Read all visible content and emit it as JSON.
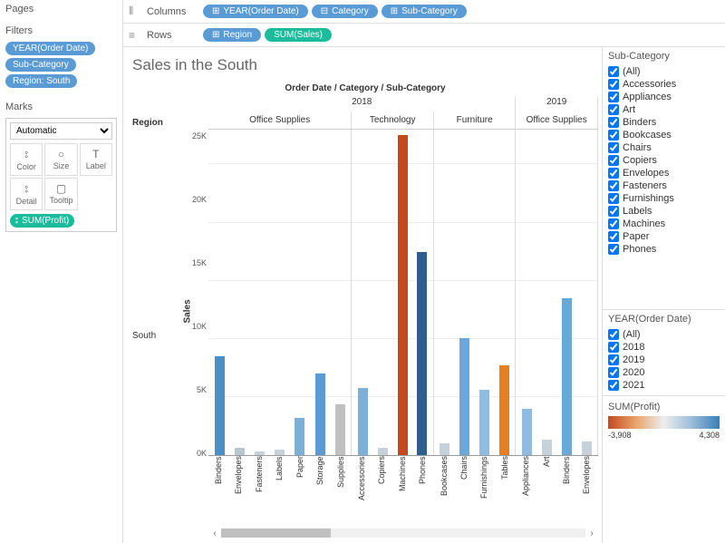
{
  "leftPanel": {
    "pages": "Pages",
    "filters": "Filters",
    "filterPills": [
      "YEAR(Order Date)",
      "Sub-Category",
      "Region: South"
    ],
    "marks": "Marks",
    "marksType": "Automatic",
    "marksCells": [
      {
        "icon": "⦂",
        "label": "Color"
      },
      {
        "icon": "○",
        "label": "Size"
      },
      {
        "icon": "T",
        "label": "Label"
      },
      {
        "icon": "⦂",
        "label": "Detail"
      },
      {
        "icon": "▢",
        "label": "Tooltip"
      }
    ],
    "profitPill": "SUM(Profit)"
  },
  "shelves": {
    "columnsLabel": "Columns",
    "rowsLabel": "Rows",
    "columns": [
      {
        "label": "YEAR(Order Date)",
        "cls": "blue",
        "icon": "⊞"
      },
      {
        "label": "Category",
        "cls": "blue",
        "icon": "⊟"
      },
      {
        "label": "Sub-Category",
        "cls": "blue",
        "icon": "⊞"
      }
    ],
    "rows": [
      {
        "label": "Region",
        "cls": "blue",
        "icon": "⊞"
      },
      {
        "label": "SUM(Sales)",
        "cls": "green",
        "icon": ""
      }
    ]
  },
  "chart": {
    "title": "Sales in the South",
    "headerLabel": "Order Date / Category / Sub-Category",
    "regionHeader": "Region",
    "regionValue": "South",
    "salesLabel": "Sales",
    "yMax": 28000,
    "yTicks": [
      "0K",
      "5K",
      "10K",
      "15K",
      "20K",
      "25K"
    ],
    "years": [
      {
        "label": "2018",
        "categories": [
          {
            "label": "Office Supplies",
            "bars": [
              {
                "l": "Binders",
                "v": 8500,
                "c": "#4b8fc4"
              },
              {
                "l": "Envelopes",
                "v": 600,
                "c": "#b9c7d1"
              },
              {
                "l": "Fasteners",
                "v": 300,
                "c": "#c7d1d9"
              },
              {
                "l": "Labels",
                "v": 500,
                "c": "#c7d1d9"
              },
              {
                "l": "Paper",
                "v": 3200,
                "c": "#7db0d6"
              },
              {
                "l": "Storage",
                "v": 7000,
                "c": "#5b9bd5"
              },
              {
                "l": "Supplies",
                "v": 4400,
                "c": "#c0c0c0"
              }
            ]
          },
          {
            "label": "Technology",
            "bars": [
              {
                "l": "Accessories",
                "v": 5800,
                "c": "#7db0d6"
              },
              {
                "l": "Copiers",
                "v": 600,
                "c": "#c7d1d9"
              },
              {
                "l": "Machines",
                "v": 27500,
                "c": "#c4491f"
              },
              {
                "l": "Phones",
                "v": 17500,
                "c": "#2c5f8d"
              }
            ]
          },
          {
            "label": "Furniture",
            "bars": [
              {
                "l": "Bookcases",
                "v": 1000,
                "c": "#c7d1d9"
              },
              {
                "l": "Chairs",
                "v": 10100,
                "c": "#6aa8d8"
              },
              {
                "l": "Furnishings",
                "v": 5600,
                "c": "#8fbce0"
              },
              {
                "l": "Tables",
                "v": 7700,
                "c": "#e67e22"
              }
            ]
          }
        ]
      },
      {
        "label": "2019",
        "categories": [
          {
            "label": "Office Supplies",
            "bars": [
              {
                "l": "Appliances",
                "v": 4000,
                "c": "#8fbce0"
              },
              {
                "l": "Art",
                "v": 1300,
                "c": "#c7d1d9"
              },
              {
                "l": "Binders",
                "v": 13500,
                "c": "#6aa8d8"
              },
              {
                "l": "Envelopes",
                "v": 1200,
                "c": "#c7d1d9"
              }
            ]
          }
        ]
      }
    ]
  },
  "rightPanel": {
    "subCategory": {
      "title": "Sub-Category",
      "items": [
        "(All)",
        "Accessories",
        "Appliances",
        "Art",
        "Binders",
        "Bookcases",
        "Chairs",
        "Copiers",
        "Envelopes",
        "Fasteners",
        "Furnishings",
        "Labels",
        "Machines",
        "Paper",
        "Phones"
      ]
    },
    "year": {
      "title": "YEAR(Order Date)",
      "items": [
        "(All)",
        "2018",
        "2019",
        "2020",
        "2021"
      ]
    },
    "legend": {
      "title": "SUM(Profit)",
      "min": "-3,908",
      "max": "4,308"
    }
  }
}
